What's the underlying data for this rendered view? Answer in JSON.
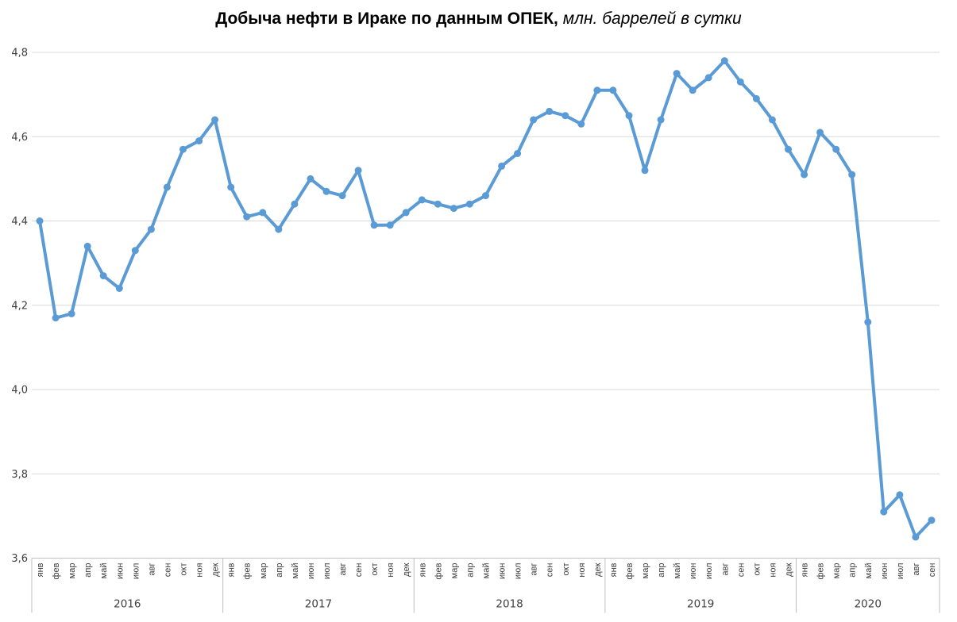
{
  "chart_data": {
    "type": "line",
    "title": "Добыча нефти в Ираке по данным ОПЕК, млн. баррелей в сутки",
    "title_bold": "Добыча нефти в Ираке по данным ОПЕК,",
    "title_italic": " млн. баррелей в сутки",
    "xlabel": "",
    "ylabel": "",
    "ylim": [
      3.6,
      4.8
    ],
    "y_tick_step": 0.2,
    "y_tick_labels": [
      "4,8",
      "4,6",
      "4,4",
      "4,2",
      "4,0",
      "3,8",
      "3,6"
    ],
    "grid": true,
    "legend": "none",
    "line_color": "#5B9BD5",
    "marker": "circle",
    "groups": [
      {
        "year": "2016",
        "months": [
          "янв",
          "фев",
          "мар",
          "апр",
          "май",
          "июн",
          "июл",
          "авг",
          "сен",
          "окт",
          "ноя",
          "дек"
        ],
        "values": [
          4.4,
          4.17,
          4.18,
          4.34,
          4.27,
          4.24,
          4.33,
          4.38,
          4.48,
          4.57,
          4.59,
          4.64
        ]
      },
      {
        "year": "2017",
        "months": [
          "янв",
          "фев",
          "мар",
          "апр",
          "май",
          "июн",
          "июл",
          "авг",
          "сен",
          "окт",
          "ноя",
          "дек"
        ],
        "values": [
          4.48,
          4.41,
          4.42,
          4.38,
          4.44,
          4.5,
          4.47,
          4.46,
          4.52,
          4.39,
          4.39,
          4.42
        ]
      },
      {
        "year": "2018",
        "months": [
          "янв",
          "фев",
          "мар",
          "апр",
          "май",
          "июн",
          "июл",
          "авг",
          "сен",
          "окт",
          "ноя",
          "дек"
        ],
        "values": [
          4.45,
          4.44,
          4.43,
          4.44,
          4.46,
          4.53,
          4.56,
          4.64,
          4.66,
          4.65,
          4.63,
          4.71
        ]
      },
      {
        "year": "2019",
        "months": [
          "янв",
          "фев",
          "мар",
          "апр",
          "май",
          "июн",
          "июл",
          "авг",
          "сен",
          "окт",
          "ноя",
          "дек"
        ],
        "values": [
          4.71,
          4.65,
          4.52,
          4.64,
          4.75,
          4.71,
          4.74,
          4.78,
          4.73,
          4.69,
          4.64,
          4.57
        ]
      },
      {
        "year": "2020",
        "months": [
          "янв",
          "фев",
          "мар",
          "апр",
          "май",
          "июн",
          "июл",
          "авг",
          "сен"
        ],
        "values": [
          4.51,
          4.61,
          4.57,
          4.51,
          4.16,
          3.71,
          3.75,
          3.65,
          3.69
        ]
      }
    ]
  },
  "colors": {
    "line": "#5B9BD5",
    "marker": "#5B9BD5",
    "gridline": "#D9D9D9",
    "axis_line": "#BFBFBF",
    "separator": "#BFBFBF",
    "tick_text": "#404040",
    "title_text": "#000000",
    "background": "#FFFFFF"
  }
}
